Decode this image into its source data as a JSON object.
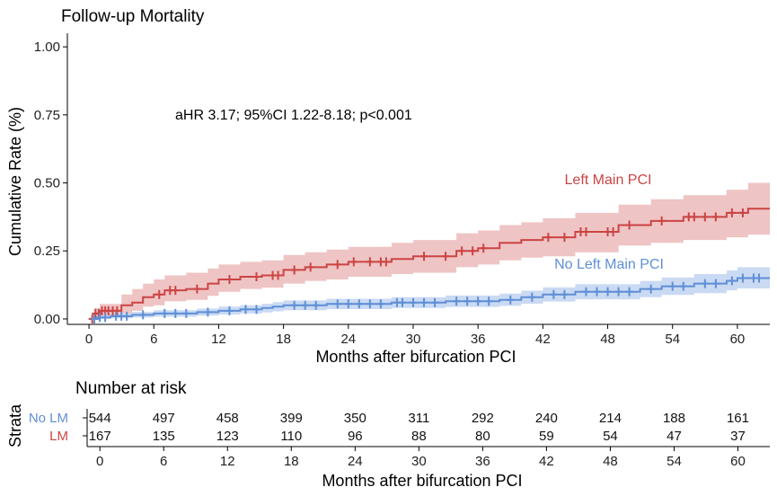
{
  "chart_data": [
    {
      "type": "line",
      "subtype": "kaplan-meier-cumulative-incidence",
      "title": "Follow-up Mortality",
      "xlabel": "Months after bifurcation PCI",
      "ylabel": "Cumulative Rate (%)",
      "xlim": [
        -2,
        63
      ],
      "ylim": [
        -0.02,
        1.05
      ],
      "x_ticks": [
        0,
        6,
        12,
        18,
        24,
        30,
        36,
        42,
        48,
        54,
        60
      ],
      "x_tick_labels": [
        "0",
        "6",
        "12",
        "18",
        "24",
        "30",
        "36",
        "42",
        "48",
        "54",
        "60"
      ],
      "y_ticks": [
        0,
        0.25,
        0.5,
        0.75,
        1.0
      ],
      "y_tick_labels": [
        "0.00",
        "0.25",
        "0.50",
        "0.75",
        "1.00"
      ],
      "grid": false,
      "annotation": "aHR 3.17; 95%CI 1.22-8.18; p<0.001",
      "series": [
        {
          "name": "Left Main PCI",
          "color": "#cc4444",
          "band_color": "#eab0b0",
          "steps": [
            [
              0,
              0.0
            ],
            [
              0.5,
              0.02
            ],
            [
              1,
              0.03
            ],
            [
              3,
              0.05
            ],
            [
              4,
              0.06
            ],
            [
              5,
              0.08
            ],
            [
              6,
              0.09
            ],
            [
              7,
              0.105
            ],
            [
              9,
              0.11
            ],
            [
              11,
              0.13
            ],
            [
              12,
              0.145
            ],
            [
              14,
              0.155
            ],
            [
              16,
              0.16
            ],
            [
              18,
              0.18
            ],
            [
              20,
              0.19
            ],
            [
              22,
              0.2
            ],
            [
              24,
              0.21
            ],
            [
              28,
              0.22
            ],
            [
              30,
              0.23
            ],
            [
              34,
              0.25
            ],
            [
              36,
              0.26
            ],
            [
              38,
              0.28
            ],
            [
              40,
              0.29
            ],
            [
              42,
              0.3
            ],
            [
              45,
              0.32
            ],
            [
              49,
              0.345
            ],
            [
              52,
              0.36
            ],
            [
              55,
              0.375
            ],
            [
              59,
              0.39
            ],
            [
              61,
              0.405
            ],
            [
              63,
              0.405
            ]
          ],
          "lower": [
            [
              0,
              0.0
            ],
            [
              0.5,
              0.005
            ],
            [
              1,
              0.01
            ],
            [
              3,
              0.02
            ],
            [
              4,
              0.03
            ],
            [
              5,
              0.045
            ],
            [
              6,
              0.05
            ],
            [
              7,
              0.065
            ],
            [
              9,
              0.07
            ],
            [
              11,
              0.085
            ],
            [
              12,
              0.1
            ],
            [
              14,
              0.11
            ],
            [
              16,
              0.115
            ],
            [
              18,
              0.13
            ],
            [
              20,
              0.14
            ],
            [
              22,
              0.145
            ],
            [
              24,
              0.155
            ],
            [
              28,
              0.165
            ],
            [
              30,
              0.17
            ],
            [
              34,
              0.19
            ],
            [
              36,
              0.2
            ],
            [
              38,
              0.215
            ],
            [
              40,
              0.225
            ],
            [
              42,
              0.23
            ],
            [
              45,
              0.245
            ],
            [
              49,
              0.27
            ],
            [
              52,
              0.28
            ],
            [
              55,
              0.29
            ],
            [
              59,
              0.3
            ],
            [
              61,
              0.31
            ],
            [
              63,
              0.31
            ]
          ],
          "upper": [
            [
              0,
              0.0
            ],
            [
              0.5,
              0.04
            ],
            [
              1,
              0.055
            ],
            [
              3,
              0.09
            ],
            [
              4,
              0.11
            ],
            [
              5,
              0.13
            ],
            [
              6,
              0.145
            ],
            [
              7,
              0.16
            ],
            [
              9,
              0.17
            ],
            [
              11,
              0.185
            ],
            [
              12,
              0.2
            ],
            [
              14,
              0.21
            ],
            [
              16,
              0.215
            ],
            [
              18,
              0.235
            ],
            [
              20,
              0.245
            ],
            [
              22,
              0.255
            ],
            [
              24,
              0.265
            ],
            [
              28,
              0.28
            ],
            [
              30,
              0.29
            ],
            [
              34,
              0.315
            ],
            [
              36,
              0.325
            ],
            [
              38,
              0.345
            ],
            [
              40,
              0.355
            ],
            [
              42,
              0.37
            ],
            [
              45,
              0.39
            ],
            [
              49,
              0.42
            ],
            [
              52,
              0.44
            ],
            [
              55,
              0.455
            ],
            [
              59,
              0.475
            ],
            [
              61,
              0.5
            ],
            [
              63,
              0.5
            ]
          ],
          "censored_x": [
            0.3,
            0.6,
            0.9,
            1.2,
            1.5,
            1.8,
            2.2,
            2.6,
            6.5,
            7.5,
            8,
            10,
            13,
            15.5,
            17,
            17.5,
            19,
            20.5,
            23,
            24.5,
            26,
            27,
            27.5,
            31,
            33,
            34.5,
            35.5,
            36.5,
            42.5,
            44,
            45.5,
            46,
            48,
            48.5,
            50,
            53,
            55.5,
            56,
            57,
            58,
            59.5,
            60.5
          ]
        },
        {
          "name": "No Left Main PCI",
          "color": "#5f8fd6",
          "band_color": "#b8cdef",
          "steps": [
            [
              0,
              0.0
            ],
            [
              1,
              0.005
            ],
            [
              2,
              0.01
            ],
            [
              4,
              0.015
            ],
            [
              6,
              0.02
            ],
            [
              10,
              0.025
            ],
            [
              12,
              0.03
            ],
            [
              14,
              0.035
            ],
            [
              16,
              0.04
            ],
            [
              17,
              0.045
            ],
            [
              18,
              0.05
            ],
            [
              22,
              0.055
            ],
            [
              28,
              0.06
            ],
            [
              33,
              0.065
            ],
            [
              38,
              0.07
            ],
            [
              40,
              0.08
            ],
            [
              42,
              0.09
            ],
            [
              45,
              0.1
            ],
            [
              51,
              0.11
            ],
            [
              53,
              0.12
            ],
            [
              56,
              0.13
            ],
            [
              59,
              0.14
            ],
            [
              60,
              0.15
            ],
            [
              63,
              0.15
            ]
          ],
          "lower": [
            [
              0,
              0.0
            ],
            [
              1,
              0.0
            ],
            [
              2,
              0.002
            ],
            [
              4,
              0.005
            ],
            [
              6,
              0.008
            ],
            [
              10,
              0.012
            ],
            [
              12,
              0.016
            ],
            [
              14,
              0.02
            ],
            [
              16,
              0.024
            ],
            [
              17,
              0.028
            ],
            [
              18,
              0.032
            ],
            [
              22,
              0.036
            ],
            [
              28,
              0.04
            ],
            [
              33,
              0.044
            ],
            [
              38,
              0.048
            ],
            [
              40,
              0.056
            ],
            [
              42,
              0.064
            ],
            [
              45,
              0.072
            ],
            [
              51,
              0.08
            ],
            [
              53,
              0.088
            ],
            [
              56,
              0.095
            ],
            [
              59,
              0.105
            ],
            [
              60,
              0.112
            ],
            [
              63,
              0.112
            ]
          ],
          "upper": [
            [
              0,
              0.0
            ],
            [
              1,
              0.012
            ],
            [
              2,
              0.02
            ],
            [
              4,
              0.026
            ],
            [
              6,
              0.032
            ],
            [
              10,
              0.038
            ],
            [
              12,
              0.045
            ],
            [
              14,
              0.05
            ],
            [
              16,
              0.056
            ],
            [
              17,
              0.062
            ],
            [
              18,
              0.068
            ],
            [
              22,
              0.074
            ],
            [
              28,
              0.08
            ],
            [
              33,
              0.086
            ],
            [
              38,
              0.093
            ],
            [
              40,
              0.104
            ],
            [
              42,
              0.116
            ],
            [
              45,
              0.128
            ],
            [
              51,
              0.14
            ],
            [
              53,
              0.152
            ],
            [
              56,
              0.165
            ],
            [
              59,
              0.178
            ],
            [
              60,
              0.19
            ],
            [
              63,
              0.19
            ]
          ],
          "censored_x": [
            0.5,
            1,
            1.5,
            2.5,
            3,
            3.5,
            5,
            7,
            8,
            9,
            11,
            13,
            14.5,
            15.5,
            19,
            20,
            21,
            23,
            24,
            25,
            26,
            27,
            28.5,
            29,
            30,
            31,
            32,
            34,
            35,
            36,
            37,
            39,
            41,
            43,
            44,
            46,
            47,
            48,
            49,
            50,
            52,
            54,
            55,
            57,
            58,
            59.5,
            60.5,
            61.5,
            62
          ]
        }
      ]
    },
    {
      "type": "table",
      "title": "Number at risk",
      "ylabel": "Strata",
      "xlabel": "Months after bifurcation PCI",
      "x_ticks": [
        0,
        6,
        12,
        18,
        24,
        30,
        36,
        42,
        48,
        54,
        60
      ],
      "x_tick_labels": [
        "0",
        "6",
        "12",
        "18",
        "24",
        "30",
        "36",
        "42",
        "48",
        "54",
        "60"
      ],
      "rows": [
        {
          "label": "No LM",
          "color": "#5f8fd6",
          "values": [
            "544",
            "497",
            "458",
            "399",
            "350",
            "311",
            "292",
            "240",
            "214",
            "188",
            "161"
          ]
        },
        {
          "label": "LM",
          "color": "#cc4444",
          "values": [
            "167",
            "135",
            "123",
            "110",
            "96",
            "88",
            "80",
            "59",
            "54",
            "47",
            "37"
          ]
        }
      ]
    }
  ]
}
